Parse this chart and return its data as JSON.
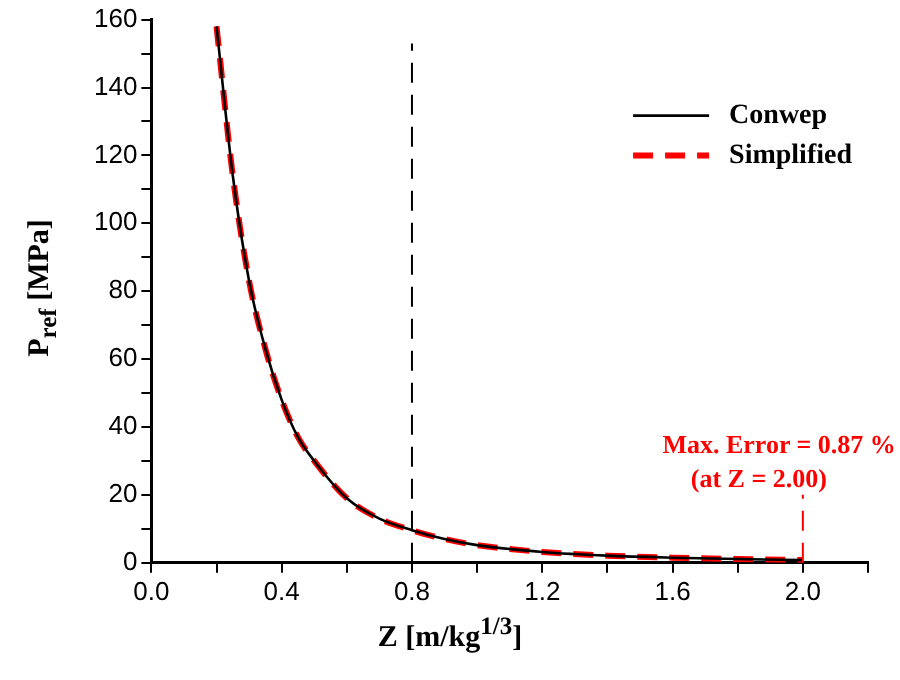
{
  "chart_data": {
    "type": "line",
    "xlabel": "Z [m/kg$^{1/3}$]",
    "ylabel": "P$_{ref}$ [MPa]",
    "x": [
      0.2,
      0.25,
      0.3,
      0.35,
      0.4,
      0.45,
      0.5,
      0.6,
      0.7,
      0.8,
      0.9,
      1.0,
      1.2,
      1.4,
      1.6,
      1.8,
      2.0
    ],
    "series": [
      {
        "name": "Conwep",
        "color": "#000000",
        "line_style": "solid",
        "values": [
          158,
          114,
          83,
          63,
          48,
          37,
          30,
          19,
          13,
          9.6,
          7,
          5.2,
          3.2,
          2.1,
          1.5,
          1.1,
          0.8
        ]
      },
      {
        "name": "Simplified",
        "color": "#ff0000",
        "line_style": "dashed",
        "values": [
          158,
          114,
          83,
          63,
          48,
          37,
          30,
          19,
          13,
          9.6,
          7,
          5.2,
          3.2,
          2.1,
          1.5,
          1.1,
          0.8
        ]
      }
    ],
    "xlim": [
      0,
      2.2
    ],
    "xticks": [
      {
        "value": 0,
        "label": "0.0"
      },
      {
        "value": 0.2,
        "label": null
      },
      0.4,
      {
        "value": 0.6,
        "label": null
      },
      0.8,
      {
        "value": 1.0,
        "label": null
      },
      1.2,
      {
        "value": 1.4,
        "label": null
      },
      1.6,
      {
        "value": 1.8,
        "label": null
      },
      {
        "value": 2.0,
        "label": "2.0"
      },
      {
        "value": 2.2,
        "label": null
      }
    ],
    "ylim": [
      0,
      160
    ],
    "yticks": [
      0,
      {
        "value": 10,
        "label": null
      },
      20,
      {
        "value": 30,
        "label": null
      },
      40,
      {
        "value": 50,
        "label": null
      },
      60,
      {
        "value": 70,
        "label": null
      },
      80,
      {
        "value": 90,
        "label": null
      },
      100,
      {
        "value": 110,
        "label": null
      },
      120,
      {
        "value": 130,
        "label": null
      },
      140,
      {
        "value": 150,
        "label": null
      },
      160
    ],
    "ref_lines": [
      {
        "axis": "x",
        "value": 0.8,
        "color": "#000000",
        "line_style": "dashed"
      },
      {
        "axis": "x",
        "value": 2.0,
        "color": "#ff0000",
        "line_style": "dashed"
      }
    ],
    "annotations": [
      "Max. Error = 0.87 %",
      "(at Z = 2.00)"
    ],
    "legend": "top right",
    "grid": false,
    "marker": "none"
  }
}
